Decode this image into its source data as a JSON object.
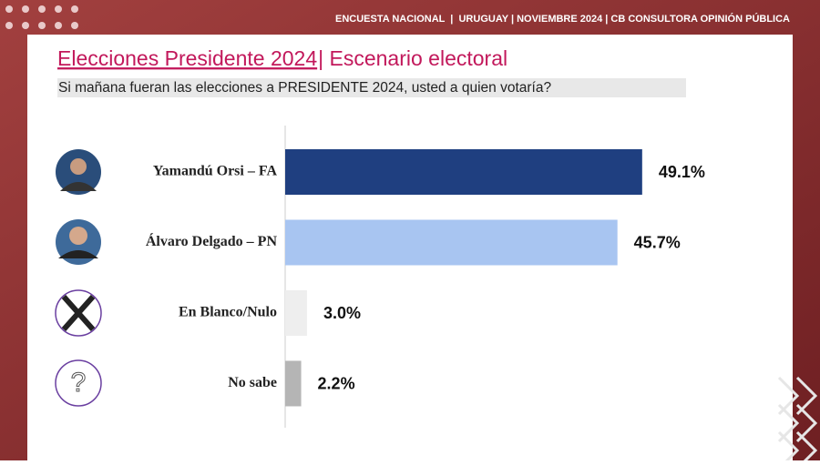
{
  "header": "ENCUESTA NACIONAL  |  URUGUAY | NOVIEMBRE 2024 | CB CONSULTORA OPINIÓN PÚBLICA",
  "chart_data": {
    "type": "bar",
    "orientation": "horizontal",
    "title": "Elecciones Presidente 2024",
    "title_suffix": "| Escenario electoral",
    "subtitle": "Si mañana fueran las elecciones a PRESIDENTE 2024, usted a quien votaría?",
    "categories": [
      "Yamandú Orsi – FA",
      "Álvaro Delgado – PN",
      "En Blanco/Nulo",
      "No sabe"
    ],
    "values": [
      49.1,
      45.7,
      3.0,
      2.2
    ],
    "value_labels": [
      "49.1%",
      "45.7%",
      "3.0%",
      "2.2%"
    ],
    "colors": [
      "#1f3f80",
      "#a8c5f1",
      "#eeeeee",
      "#b5b5b5"
    ],
    "xlim": [
      0,
      50
    ]
  }
}
